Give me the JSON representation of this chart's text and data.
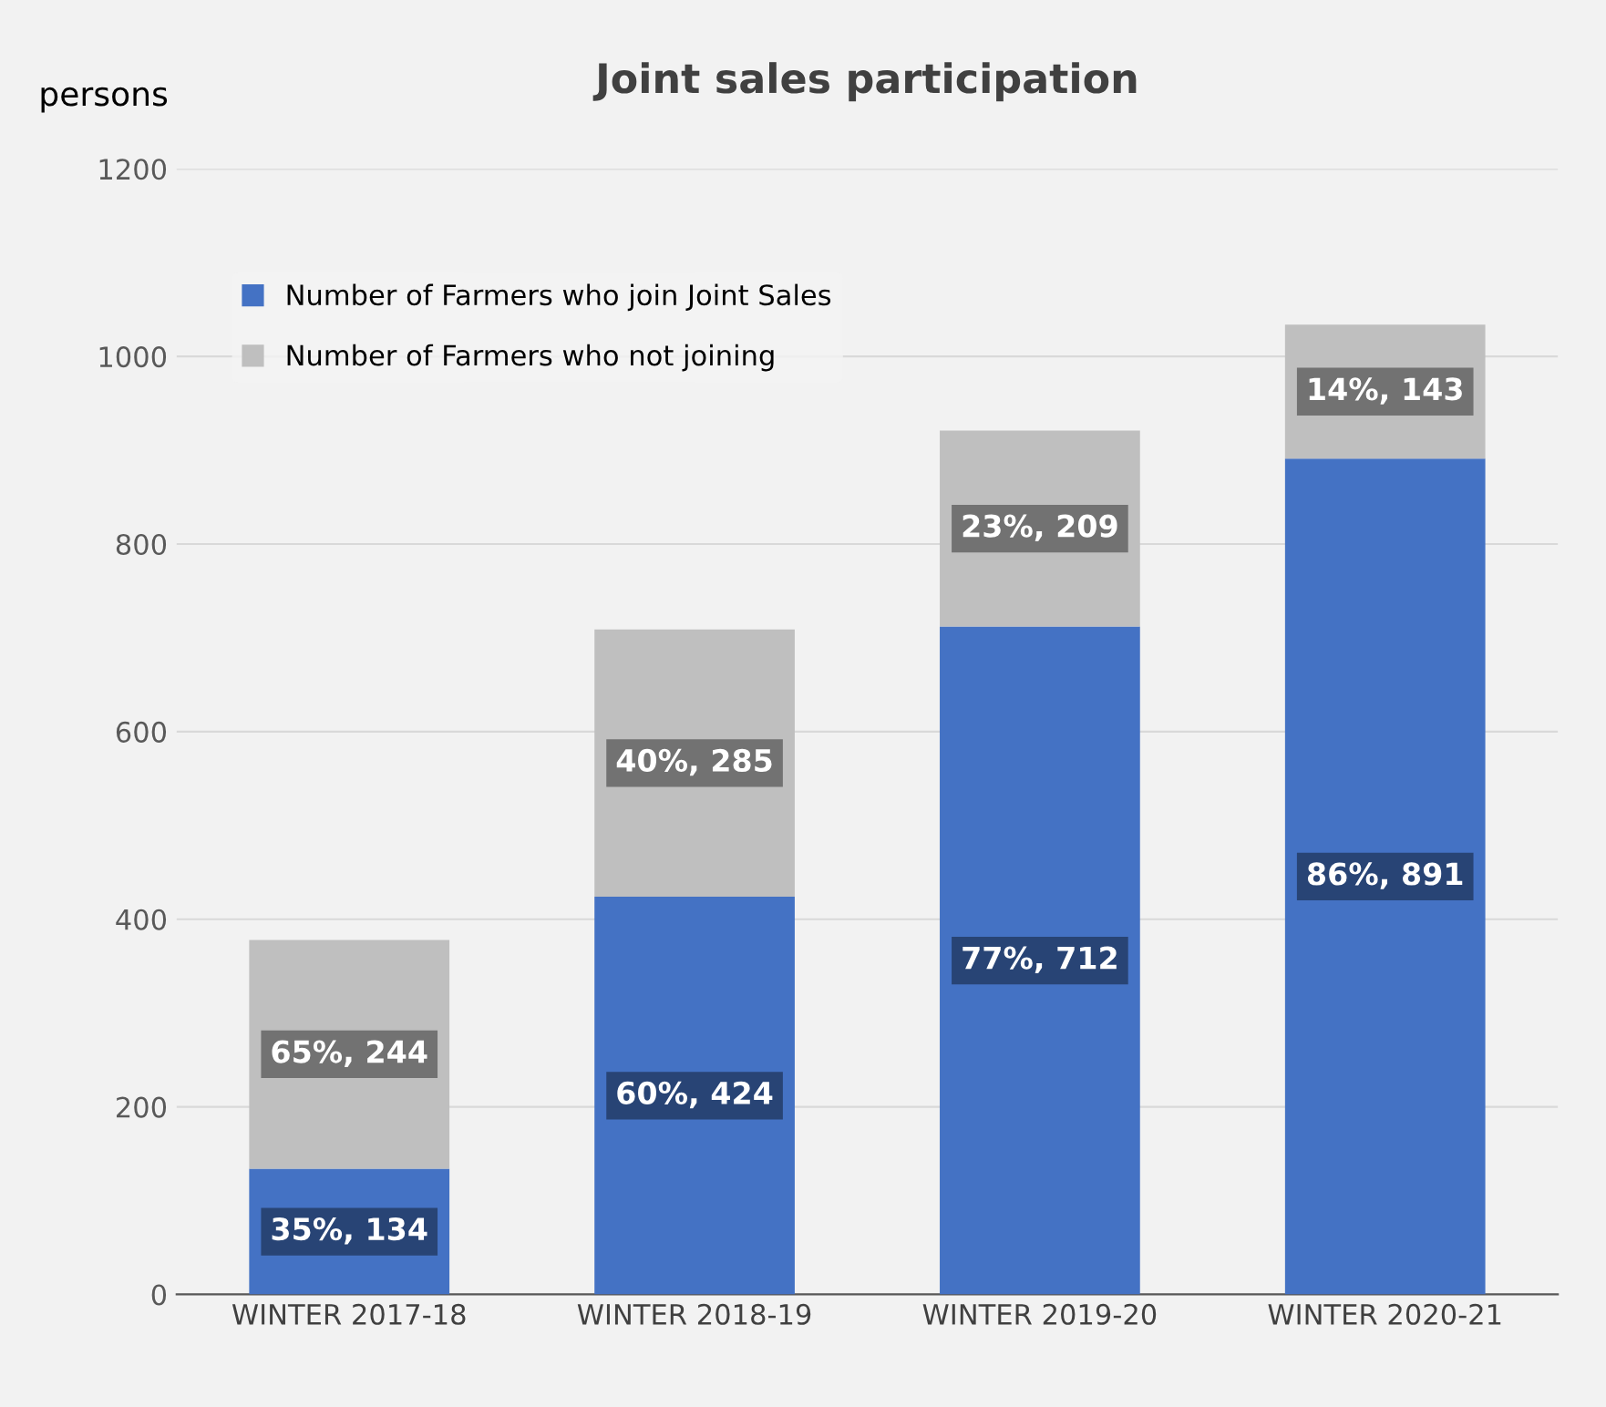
{
  "chart_data": {
    "type": "bar",
    "title": "Joint sales participation",
    "ylabel": "persons",
    "categories": [
      "WINTER 2017-18",
      "WINTER 2018-19",
      "WINTER 2019-20",
      "WINTER 2020-21"
    ],
    "stacked": true,
    "series": [
      {
        "name": "Number of Farmers who join Joint Sales",
        "color": "#4472c4",
        "values": [
          134,
          424,
          712,
          891
        ],
        "value_labels": [
          "35%, 134",
          "60%, 424",
          "77%, 712",
          "86%, 891"
        ]
      },
      {
        "name": "Number of Farmers who not joining",
        "color": "#bfbfbf",
        "values": [
          244,
          285,
          209,
          143
        ],
        "value_labels": [
          "65%, 244",
          "40%, 285",
          "23%, 209",
          "14%, 143"
        ]
      }
    ],
    "ylim": [
      0,
      1200
    ],
    "yticks": [
      0,
      200,
      400,
      600,
      800,
      1000,
      1200
    ],
    "grid": "y",
    "legend": "top left"
  }
}
